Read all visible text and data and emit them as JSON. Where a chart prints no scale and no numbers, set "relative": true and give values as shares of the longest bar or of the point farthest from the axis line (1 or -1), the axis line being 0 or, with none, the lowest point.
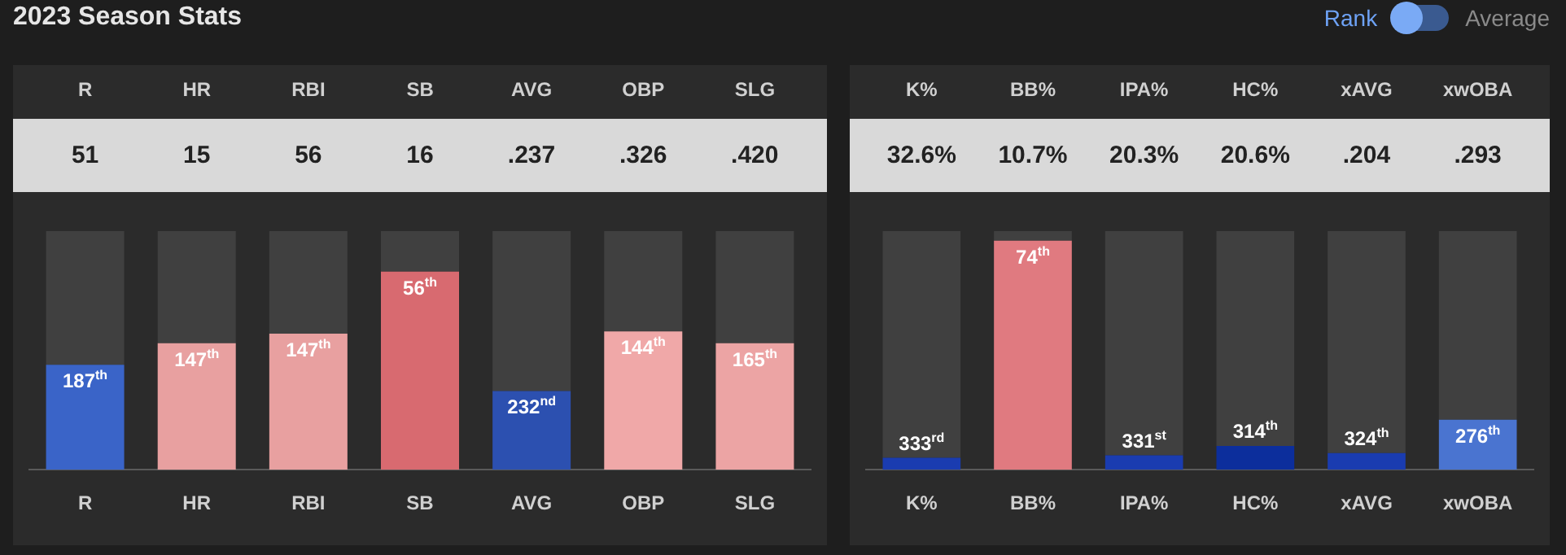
{
  "chart_data": [
    {
      "type": "bar",
      "title": "2023 Season Stats",
      "relative": true,
      "stacked": true,
      "legend": false,
      "categories": [
        "R",
        "HR",
        "RBI",
        "SB",
        "AVG",
        "OBP",
        "SLG"
      ],
      "series": [
        {
          "values": [
            0.44,
            0.53,
            0.57,
            0.83,
            0.33,
            0.58,
            0.53
          ],
          "colors": [
            "#3a64c8",
            "#e8a0a0",
            "#e8a0a0",
            "#d86a70",
            "#2c50b0",
            "#f0a8a8",
            "#eca4a4"
          ]
        },
        {
          "values": [
            0.56,
            0.47,
            0.43,
            0.17,
            0.67,
            0.42,
            0.47
          ],
          "color": "#404040"
        }
      ],
      "annotations": [
        "51",
        "15",
        "56",
        "16",
        ".237",
        ".326",
        ".420",
        "Rank",
        "Average",
        {
          "text": "187$^{th}$",
          "x": "R",
          "y": 0.44
        },
        {
          "text": "147$^{th}$",
          "x": "HR",
          "y": 0.53
        },
        {
          "text": "147$^{th}$",
          "x": "RBI",
          "y": 0.57
        },
        {
          "text": "56$^{th}$",
          "x": "SB",
          "y": 0.83
        },
        {
          "text": "232$^{nd}$",
          "x": "AVG",
          "y": 0.33
        },
        {
          "text": "144$^{th}$",
          "x": "OBP",
          "y": 0.58
        },
        {
          "text": "165$^{th}$",
          "x": "SLG",
          "y": 0.53
        }
      ]
    },
    {
      "type": "bar",
      "relative": true,
      "stacked": true,
      "legend": false,
      "categories": [
        "K%",
        "BB%",
        "IPA%",
        "HC%",
        "xAVG",
        "xwOBA"
      ],
      "series": [
        {
          "values": [
            0.05,
            0.96,
            0.06,
            0.1,
            0.07,
            0.21
          ],
          "colors": [
            "#1a3cb0",
            "#e07a80",
            "#1a3cb0",
            "#0c2e9c",
            "#1a3cb0",
            "#4a74d0"
          ]
        },
        {
          "values": [
            0.95,
            0.04,
            0.94,
            0.9,
            0.93,
            0.79
          ],
          "color": "#404040"
        }
      ],
      "annotations": [
        "32.6%",
        "10.7%",
        "20.3%",
        "20.6%",
        ".204",
        ".293",
        {
          "text": "333$^{rd}$",
          "x": "K%",
          "y": 0.05
        },
        {
          "text": "74$^{th}$",
          "x": "BB%",
          "y": 0.96
        },
        {
          "text": "331$^{st}$",
          "x": "IPA%",
          "y": 0.06
        },
        {
          "text": "314$^{th}$",
          "x": "HC%",
          "y": 0.1
        },
        {
          "text": "324$^{th}$",
          "x": "xAVG",
          "y": 0.07
        },
        {
          "text": "276$^{th}$",
          "x": "xwOBA",
          "y": 0.21
        }
      ]
    }
  ]
}
